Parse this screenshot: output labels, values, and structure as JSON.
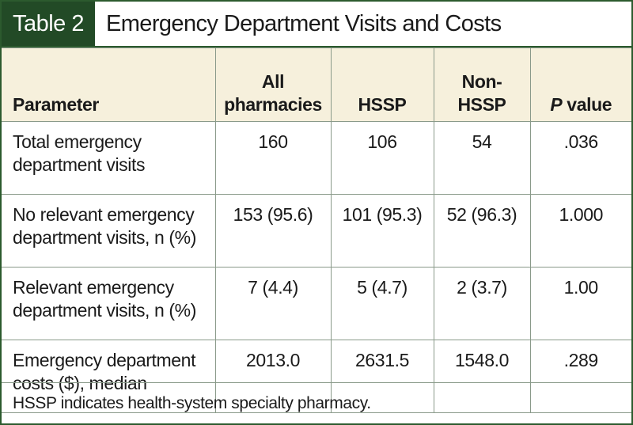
{
  "header": {
    "label": "Table 2",
    "title": "Emergency Department Visits and Costs"
  },
  "columns": {
    "parameter": "Parameter",
    "all_line1": "All",
    "all_line2": "pharmacies",
    "hssp": "HSSP",
    "nonhssp_line1": "Non-",
    "nonhssp_line2": "HSSP",
    "p_italic": "P",
    "p_rest": " value"
  },
  "rows": [
    {
      "param_line1": "Total emergency",
      "param_line2": "department visits",
      "all": "160",
      "hssp": "106",
      "nonhssp": "54",
      "p": ".036"
    },
    {
      "param_line1": "No relevant emergency",
      "param_line2": "department visits, n (%)",
      "all": "153 (95.6)",
      "hssp": "101 (95.3)",
      "nonhssp": "52 (96.3)",
      "p": "1.000"
    },
    {
      "param_line1": "Relevant emergency",
      "param_line2": "department visits, n (%)",
      "all": "7 (4.4)",
      "hssp": "5 (4.7)",
      "nonhssp": "2 (3.7)",
      "p": "1.00"
    },
    {
      "param_line1": "Emergency department",
      "param_line2": "costs ($), median",
      "all": "2013.0",
      "hssp": "2631.5",
      "nonhssp": "1548.0",
      "p": ".289"
    }
  ],
  "footnote": "HSSP indicates health-system specialty pharmacy.",
  "colors": {
    "label_bg": "#224a26",
    "header_bg": "#f6f0dc",
    "frame": "#2c5a2e"
  }
}
